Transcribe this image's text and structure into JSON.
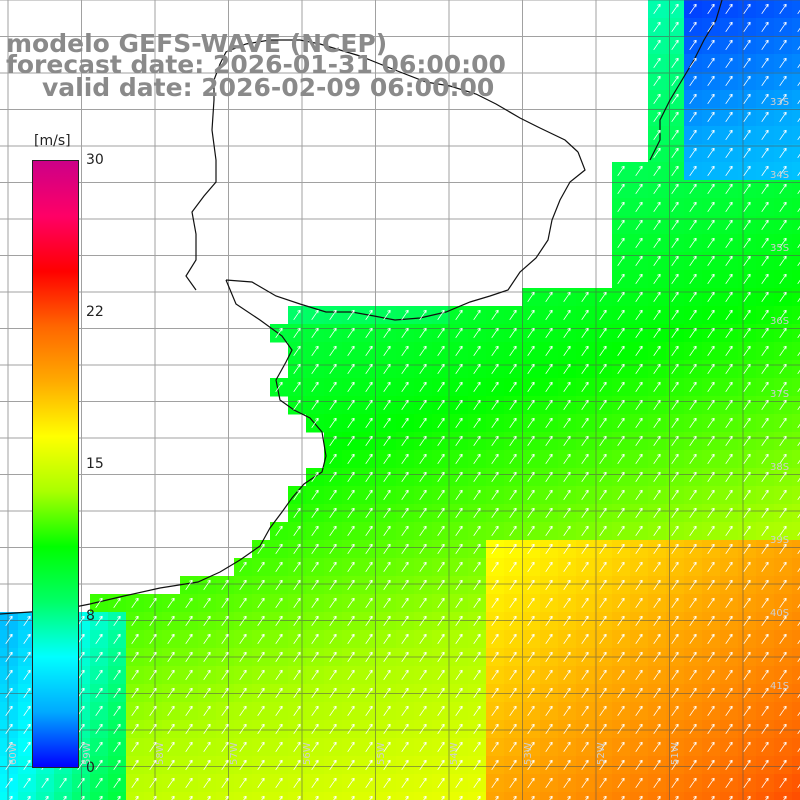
{
  "title": {
    "model": "modelo GEFS-WAVE (NCEP)",
    "forecast": "forecast date: 2026-01-31 06:00:00",
    "valid": "valid date: 2026-02-09 06:00:00"
  },
  "colorbar": {
    "unit": "[m/s]",
    "min": 0,
    "max": 30,
    "ticks": [
      {
        "label": "30",
        "value": 30
      },
      {
        "label": "22",
        "value": 22.5
      },
      {
        "label": "15",
        "value": 15
      },
      {
        "label": "8",
        "value": 7.5
      },
      {
        "label": "0",
        "value": 0
      }
    ],
    "colors": [
      "#0000ff",
      "#00aaff",
      "#00ffff",
      "#00ff66",
      "#00ff00",
      "#aaff00",
      "#ffff00",
      "#ffaa00",
      "#ff6600",
      "#ff0000",
      "#ff0066",
      "#cc0088"
    ]
  },
  "map": {
    "lat_labels": [
      "33S",
      "34S",
      "35S",
      "36S",
      "37S",
      "38S",
      "39S",
      "40S",
      "41S"
    ],
    "lon_labels": [
      "60W",
      "59W",
      "58W",
      "57W",
      "56W",
      "55W",
      "54W",
      "53W",
      "52W",
      "51W"
    ]
  }
}
